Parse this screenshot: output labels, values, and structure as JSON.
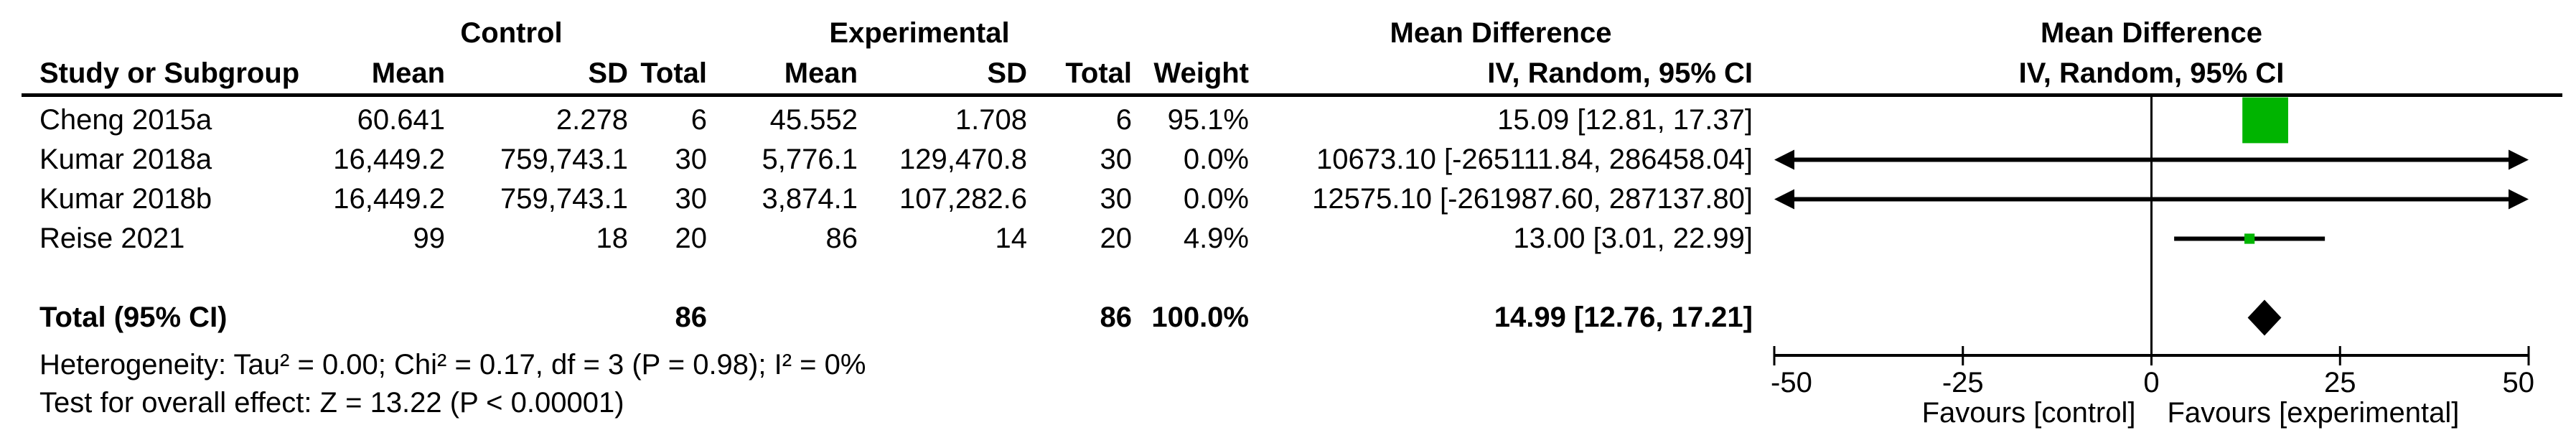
{
  "table": {
    "col_headers_row1": {
      "control": "Control",
      "experimental": "Experimental",
      "md_text": "Mean Difference",
      "md_plot": "Mean Difference"
    },
    "col_headers_row2": {
      "study": "Study or Subgroup",
      "mean_c": "Mean",
      "sd_c": "SD",
      "total_c": "Total",
      "mean_e": "Mean",
      "sd_e": "SD",
      "total_e": "Total",
      "weight": "Weight",
      "iv_text": "IV, Random, 95% CI",
      "iv_plot": "IV, Random, 95% CI"
    },
    "rows": [
      {
        "study": "Cheng 2015a",
        "mean_c": "60.641",
        "sd_c": "2.278",
        "total_c": "6",
        "mean_e": "45.552",
        "sd_e": "1.708",
        "total_e": "6",
        "weight": "95.1%",
        "md": "15.09 [12.81, 17.37]"
      },
      {
        "study": "Kumar 2018a",
        "mean_c": "16,449.2",
        "sd_c": "759,743.1",
        "total_c": "30",
        "mean_e": "5,776.1",
        "sd_e": "129,470.8",
        "total_e": "30",
        "weight": "0.0%",
        "md": "10673.10 [-265111.84, 286458.04]"
      },
      {
        "study": "Kumar 2018b",
        "mean_c": "16,449.2",
        "sd_c": "759,743.1",
        "total_c": "30",
        "mean_e": "3,874.1",
        "sd_e": "107,282.6",
        "total_e": "30",
        "weight": "0.0%",
        "md": "12575.10 [-261987.60, 287137.80]"
      },
      {
        "study": "Reise 2021",
        "mean_c": "99",
        "sd_c": "18",
        "total_c": "20",
        "mean_e": "86",
        "sd_e": "14",
        "total_e": "20",
        "weight": "4.9%",
        "md": "13.00 [3.01, 22.99]"
      }
    ],
    "total_row": {
      "study": "Total (95% CI)",
      "total_c": "86",
      "total_e": "86",
      "weight": "100.0%",
      "md": "14.99 [12.76, 17.21]"
    },
    "footnotes": [
      "Heterogeneity: Tau² = 0.00; Chi² = 0.17, df = 3 (P = 0.98); I² = 0%",
      "Test for overall effect: Z = 13.22 (P < 0.00001)"
    ]
  },
  "chart_data": {
    "type": "scatter",
    "subtype": "forest-plot",
    "title": "Mean Difference",
    "model": "IV, Random, 95% CI",
    "studies": [
      {
        "name": "Cheng 2015a",
        "md": 15.09,
        "ci_low": 12.81,
        "ci_high": 17.37,
        "weight_pct": 95.1
      },
      {
        "name": "Kumar 2018a",
        "md": 10673.1,
        "ci_low": -265111.84,
        "ci_high": 286458.04,
        "weight_pct": 0.0
      },
      {
        "name": "Kumar 2018b",
        "md": 12575.1,
        "ci_low": -261987.6,
        "ci_high": 287137.8,
        "weight_pct": 0.0
      },
      {
        "name": "Reise 2021",
        "md": 13.0,
        "ci_low": 3.01,
        "ci_high": 22.99,
        "weight_pct": 4.9
      }
    ],
    "total": {
      "name": "Total (95% CI)",
      "md": 14.99,
      "ci_low": 12.76,
      "ci_high": 17.21,
      "weight_pct": 100.0
    },
    "heterogeneity": {
      "tau2": 0.0,
      "chi2": 0.17,
      "df": 3,
      "p": 0.98,
      "i2_pct": 0
    },
    "overall_effect": {
      "z": 13.22,
      "p": "< 0.00001"
    },
    "axis": {
      "min": -50,
      "max": 50,
      "ticks": [
        -50,
        -25,
        0,
        25,
        50
      ],
      "tick_labels": [
        "-50",
        "-25",
        "0",
        "25",
        "50"
      ]
    },
    "favours_left": "Favours [control]",
    "favours_right": "Favours [experimental]",
    "legend_position": "none",
    "grid": false,
    "colors": {
      "marker_green": "#00b400",
      "line_black": "#000000"
    }
  }
}
